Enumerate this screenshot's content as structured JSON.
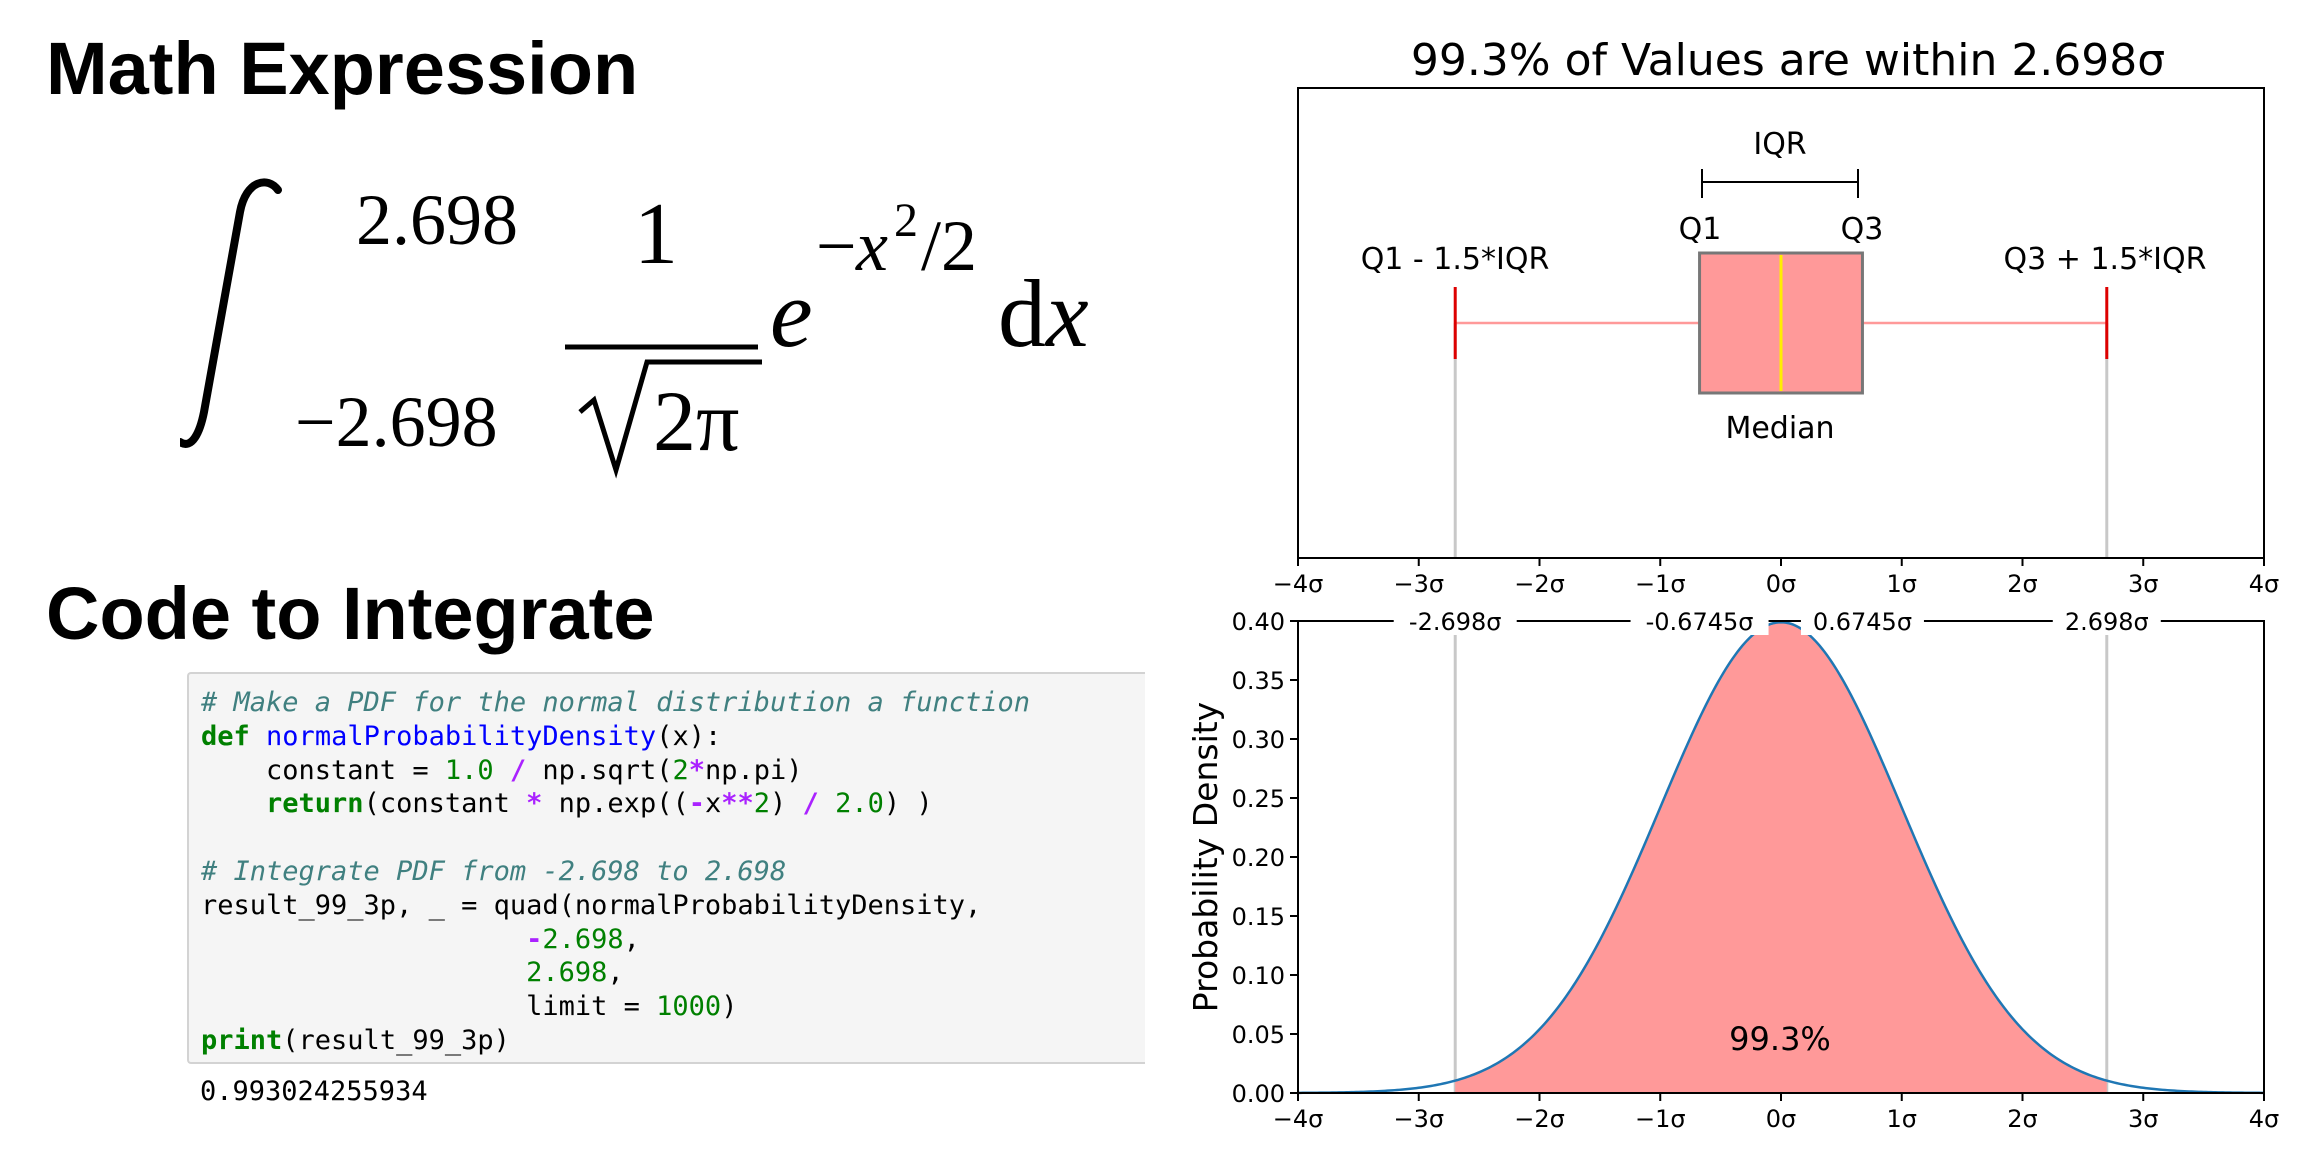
{
  "headings": {
    "math": "Math Expression",
    "code": "Code to Integrate"
  },
  "math_expression": {
    "upper_limit": "2.698",
    "lower_limit": "−2.698",
    "numerator": "1",
    "radicand": "2π",
    "exp_base": "e",
    "exp_minus": "−",
    "exp_var": "x",
    "exp_power": "2",
    "exp_div": "/2",
    "differential_d": "d",
    "differential_x": "x"
  },
  "code": {
    "lines": [
      [
        {
          "t": "comment",
          "s": "# Make a PDF for the normal distribution a function"
        }
      ],
      [
        {
          "t": "keyword",
          "s": "def"
        },
        {
          "t": "text",
          "s": " "
        },
        {
          "t": "funcname",
          "s": "normalProbabilityDensity"
        },
        {
          "t": "text",
          "s": "(x):"
        }
      ],
      [
        {
          "t": "text",
          "s": "    constant = "
        },
        {
          "t": "number",
          "s": "1.0"
        },
        {
          "t": "text",
          "s": " "
        },
        {
          "t": "operator",
          "s": "/"
        },
        {
          "t": "text",
          "s": " np.sqrt("
        },
        {
          "t": "number",
          "s": "2"
        },
        {
          "t": "operator",
          "s": "*"
        },
        {
          "t": "text",
          "s": "np.pi)"
        }
      ],
      [
        {
          "t": "text",
          "s": "    "
        },
        {
          "t": "keyword",
          "s": "return"
        },
        {
          "t": "text",
          "s": "(constant "
        },
        {
          "t": "operator",
          "s": "*"
        },
        {
          "t": "text",
          "s": " np.exp(("
        },
        {
          "t": "operator",
          "s": "-"
        },
        {
          "t": "text",
          "s": "x"
        },
        {
          "t": "operator",
          "s": "**"
        },
        {
          "t": "number",
          "s": "2"
        },
        {
          "t": "text",
          "s": ") "
        },
        {
          "t": "operator",
          "s": "/"
        },
        {
          "t": "text",
          "s": " "
        },
        {
          "t": "number",
          "s": "2.0"
        },
        {
          "t": "text",
          "s": ") )"
        }
      ],
      [],
      [
        {
          "t": "comment",
          "s": "# Integrate PDF from -2.698 to 2.698"
        }
      ],
      [
        {
          "t": "text",
          "s": "result_99_3p, _ = quad(normalProbabilityDensity,"
        }
      ],
      [
        {
          "t": "text",
          "s": "                    "
        },
        {
          "t": "operator",
          "s": "-"
        },
        {
          "t": "number",
          "s": "2.698"
        },
        {
          "t": "text",
          "s": ","
        }
      ],
      [
        {
          "t": "text",
          "s": "                    "
        },
        {
          "t": "number",
          "s": "2.698"
        },
        {
          "t": "text",
          "s": ","
        }
      ],
      [
        {
          "t": "text",
          "s": "                    limit = "
        },
        {
          "t": "number",
          "s": "1000"
        },
        {
          "t": "text",
          "s": ")"
        }
      ],
      [
        {
          "t": "keyword",
          "s": "print"
        },
        {
          "t": "text",
          "s": "(result_99_3p)"
        }
      ]
    ],
    "output": "0.993024255934"
  },
  "chart_data": [
    {
      "type": "box",
      "title": "99.3% of Values are within 2.698σ",
      "xlim": [
        -4,
        4
      ],
      "x_ticks": [
        -4,
        -3,
        -2,
        -1,
        0,
        1,
        2,
        3,
        4
      ],
      "x_tick_labels": [
        "−4σ",
        "−3σ",
        "−2σ",
        "−1σ",
        "0σ",
        "1σ",
        "2σ",
        "3σ",
        "4σ"
      ],
      "box": {
        "q1": -0.6745,
        "median": 0,
        "q3": 0.6745,
        "whisker_low": -2.698,
        "whisker_high": 2.698
      },
      "annotations": {
        "iqr": "IQR",
        "q1": "Q1",
        "q3": "Q3",
        "lower_fence": "Q1 - 1.5*IQR",
        "upper_fence": "Q3 + 1.5*IQR",
        "median": "Median"
      },
      "colors": {
        "box_fill": "#ff9999",
        "box_edge": "#777777",
        "median": "#ffee00",
        "whisker_cap": "#dd0000",
        "whisker_line": "#ff9999",
        "guide": "#c8c8c8"
      }
    },
    {
      "type": "area",
      "function": "standard normal probability density",
      "xlim": [
        -4,
        4
      ],
      "ylim": [
        0,
        0.4
      ],
      "x_ticks": [
        -4,
        -3,
        -2,
        -1,
        0,
        1,
        2,
        3,
        4
      ],
      "x_tick_labels": [
        "−4σ",
        "−3σ",
        "−2σ",
        "−1σ",
        "0σ",
        "1σ",
        "2σ",
        "3σ",
        "4σ"
      ],
      "y_ticks": [
        0,
        0.05,
        0.1,
        0.15,
        0.2,
        0.25,
        0.3,
        0.35,
        0.4
      ],
      "y_tick_labels": [
        "0.00",
        "0.05",
        "0.10",
        "0.15",
        "0.20",
        "0.25",
        "0.30",
        "0.35",
        "0.40"
      ],
      "ylabel": "Probability Density",
      "shaded_range": [
        -2.698,
        2.698
      ],
      "shaded_label": "99.3%",
      "top_markers": [
        {
          "x": -2.698,
          "label": "-2.698σ"
        },
        {
          "x": -0.6745,
          "label": "-0.6745σ"
        },
        {
          "x": 0.6745,
          "label": "0.6745σ"
        },
        {
          "x": 2.698,
          "label": "2.698σ"
        }
      ],
      "guide_lines_x": [
        -2.698,
        2.698
      ],
      "colors": {
        "fill": "#ff9999",
        "curve": "#1f77b4",
        "guide": "#c8c8c8"
      }
    }
  ]
}
